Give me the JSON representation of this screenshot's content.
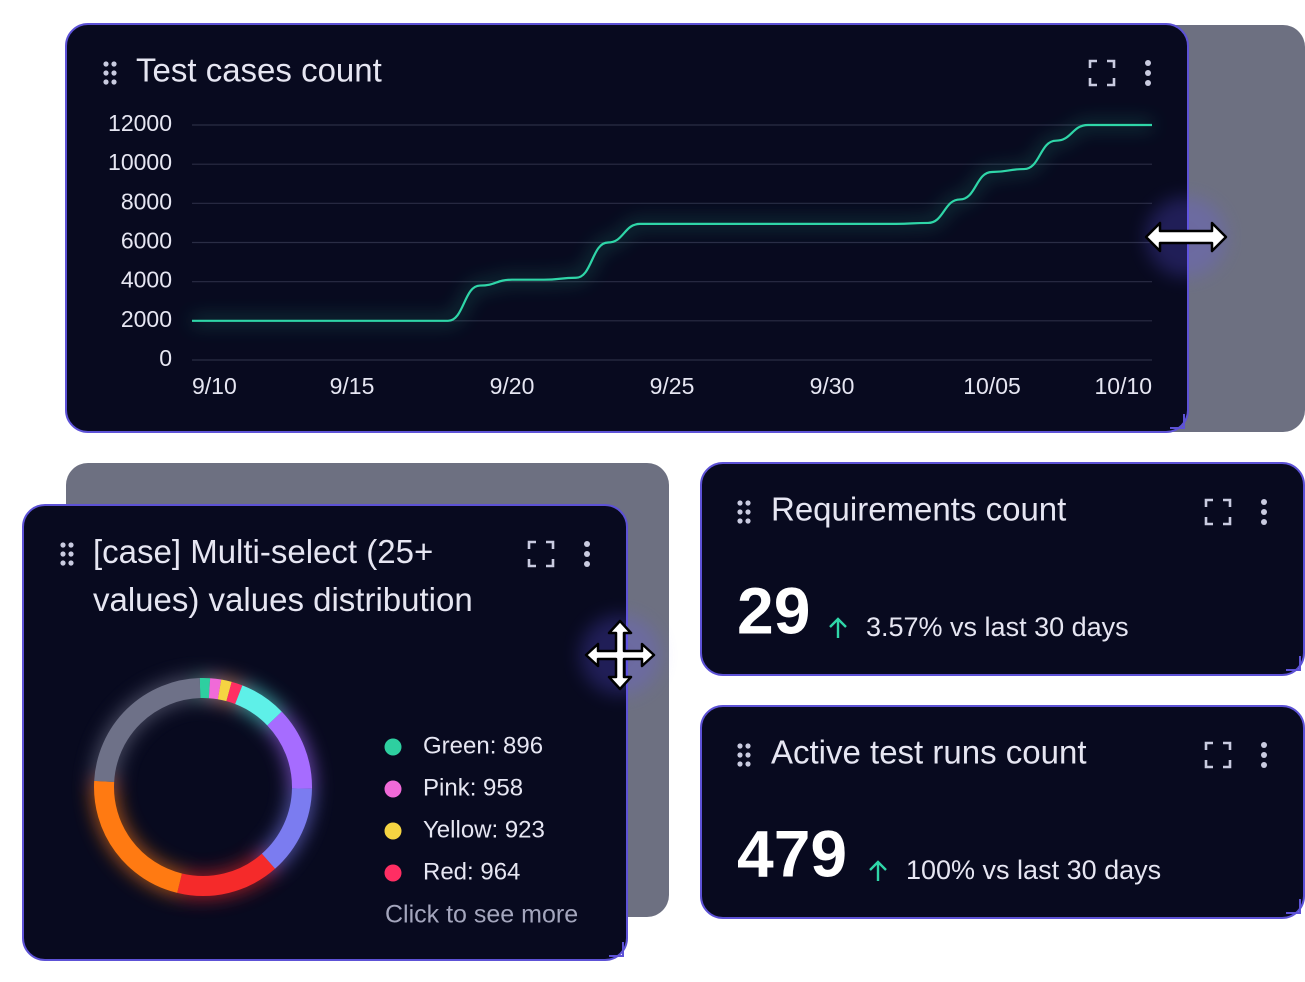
{
  "chart_data": [
    {
      "type": "line",
      "title": "Test cases count",
      "categories": [
        "9/10",
        null,
        null,
        null,
        null,
        "9/15",
        null,
        null,
        null,
        null,
        "9/20",
        null,
        null,
        null,
        null,
        "9/25",
        null,
        null,
        null,
        null,
        "9/30",
        null,
        null,
        null,
        null,
        "10/05",
        null,
        null,
        null,
        null,
        "10/10"
      ],
      "values": [
        2000,
        2000,
        2000,
        2000,
        2000,
        2000,
        2000,
        2000,
        2000,
        3800,
        4100,
        4100,
        4200,
        6000,
        6950,
        6950,
        6950,
        6950,
        6950,
        6950,
        6950,
        6950,
        6950,
        7000,
        8200,
        9600,
        9750,
        11200,
        12000,
        12000,
        12000
      ],
      "color": "#2fd6a8",
      "ylim": [
        0,
        12000
      ],
      "yticks": [
        0,
        2000,
        4000,
        6000,
        8000,
        10000,
        12000
      ],
      "grid": true
    },
    {
      "type": "pie",
      "title": "[case] Multi-select (25+ values) values distribution",
      "values": [
        896,
        958,
        923,
        964,
        4100,
        7300,
        7800,
        9000,
        13000,
        13900
      ],
      "colors": [
        "#2ecfa0",
        "#f06ad8",
        "#f5d442",
        "#ff2e63",
        "#5ef0e8",
        "#a66cff",
        "#7b7cf0",
        "#f52a2a",
        "#ff7a12",
        "#6e7188"
      ],
      "value_labels": [
        "Green: 896",
        "Pink: 958",
        "Yellow: 923",
        "Red: 964",
        null,
        null,
        null,
        null,
        null,
        null
      ],
      "legend_more": "Click to see more"
    }
  ],
  "cards": [
    {
      "title": "Requirements count",
      "value": 29,
      "change": "3.57% vs last 30 days"
    },
    {
      "title": "Active test runs count",
      "value": 479,
      "change": "100% vs last 30 days"
    }
  ]
}
